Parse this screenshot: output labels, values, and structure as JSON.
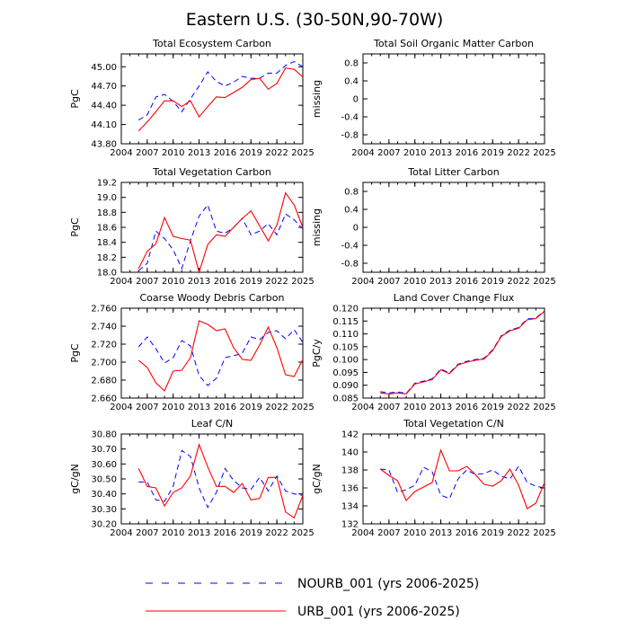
{
  "title": "Eastern U.S. (30-50N,90-70W)",
  "legend": [
    {
      "label": "NOURB_001 (yrs 2006-2025)",
      "color": "#0000ff",
      "style": "dashed"
    },
    {
      "label": "URB_001 (yrs 2006-2025)",
      "color": "#ff0000",
      "style": "solid"
    }
  ],
  "chart_data": [
    {
      "type": "line",
      "title": "Total Ecosystem Carbon",
      "ylabel": "PgC",
      "xlim": [
        2004,
        2025
      ],
      "ylim": [
        43.8,
        45.2
      ],
      "xticks": [
        "2004",
        "2007",
        "2010",
        "2013",
        "2016",
        "2019",
        "2022",
        "2025"
      ],
      "yticks": [
        "43.80",
        "44.10",
        "44.40",
        "44.70",
        "45.00"
      ],
      "x": [
        2006,
        2007,
        2008,
        2009,
        2010,
        2011,
        2012,
        2013,
        2014,
        2015,
        2016,
        2017,
        2018,
        2019,
        2020,
        2021,
        2022,
        2023,
        2024,
        2025
      ],
      "series": [
        {
          "name": "NOURB_001",
          "values": [
            44.17,
            44.25,
            44.53,
            44.57,
            44.46,
            44.3,
            44.5,
            44.7,
            44.92,
            44.77,
            44.7,
            44.76,
            44.85,
            44.82,
            44.82,
            44.9,
            44.9,
            45.02,
            45.08,
            45.0
          ]
        },
        {
          "name": "URB_001",
          "values": [
            44.0,
            44.14,
            44.3,
            44.47,
            44.47,
            44.38,
            44.47,
            44.22,
            44.38,
            44.53,
            44.52,
            44.6,
            44.68,
            44.8,
            44.82,
            44.65,
            44.74,
            44.98,
            44.96,
            44.84
          ]
        }
      ]
    },
    {
      "type": "line",
      "title": "Total Soil Organic Matter Carbon",
      "ylabel": "missing",
      "xlim": [
        2004,
        2025
      ],
      "ylim": [
        -1.0,
        1.0
      ],
      "xticks": [
        "2004",
        "2007",
        "2010",
        "2013",
        "2016",
        "2019",
        "2022",
        "2025"
      ],
      "yticks": [
        "-0.8",
        "-0.4",
        "0",
        "0.4",
        "0.8"
      ],
      "x": [],
      "series": []
    },
    {
      "type": "line",
      "title": "Total Vegetation Carbon",
      "ylabel": "PgC",
      "xlim": [
        2004,
        2025
      ],
      "ylim": [
        18.0,
        19.2
      ],
      "xticks": [
        "2004",
        "2007",
        "2010",
        "2013",
        "2016",
        "2019",
        "2022",
        "2025"
      ],
      "yticks": [
        "18.0",
        "18.2",
        "18.4",
        "18.6",
        "18.8",
        "19.0",
        "19.2"
      ],
      "x": [
        2006,
        2007,
        2008,
        2009,
        2010,
        2011,
        2012,
        2013,
        2014,
        2015,
        2016,
        2017,
        2018,
        2019,
        2020,
        2021,
        2022,
        2023,
        2024,
        2025
      ],
      "series": [
        {
          "name": "NOURB_001",
          "values": [
            18.02,
            18.12,
            18.55,
            18.45,
            18.3,
            18.05,
            18.42,
            18.75,
            18.9,
            18.55,
            18.52,
            18.6,
            18.72,
            18.5,
            18.55,
            18.65,
            18.5,
            18.78,
            18.7,
            18.58
          ]
        },
        {
          "name": "URB_001",
          "values": [
            18.05,
            18.28,
            18.38,
            18.73,
            18.48,
            18.45,
            18.43,
            18.0,
            18.37,
            18.5,
            18.48,
            18.6,
            18.72,
            18.82,
            18.62,
            18.42,
            18.63,
            19.06,
            18.9,
            18.6
          ]
        }
      ]
    },
    {
      "type": "line",
      "title": "Total Litter Carbon",
      "ylabel": "missing",
      "xlim": [
        2004,
        2025
      ],
      "ylim": [
        -1.0,
        1.0
      ],
      "xticks": [
        "2004",
        "2007",
        "2010",
        "2013",
        "2016",
        "2019",
        "2022",
        "2025"
      ],
      "yticks": [
        "-0.8",
        "-0.4",
        "0",
        "0.4",
        "0.8"
      ],
      "x": [],
      "series": []
    },
    {
      "type": "line",
      "title": "Coarse Woody Debris Carbon",
      "ylabel": "PgC",
      "xlim": [
        2004,
        2025
      ],
      "ylim": [
        2.66,
        2.76
      ],
      "xticks": [
        "2004",
        "2007",
        "2010",
        "2013",
        "2016",
        "2019",
        "2022",
        "2025"
      ],
      "yticks": [
        "2.660",
        "2.680",
        "2.700",
        "2.720",
        "2.740",
        "2.760"
      ],
      "x": [
        2006,
        2007,
        2008,
        2009,
        2010,
        2011,
        2012,
        2013,
        2014,
        2015,
        2016,
        2017,
        2018,
        2019,
        2020,
        2021,
        2022,
        2023,
        2024,
        2025
      ],
      "series": [
        {
          "name": "NOURB_001",
          "values": [
            2.717,
            2.728,
            2.715,
            2.699,
            2.705,
            2.724,
            2.718,
            2.685,
            2.674,
            2.682,
            2.705,
            2.707,
            2.71,
            2.728,
            2.725,
            2.733,
            2.735,
            2.726,
            2.736,
            2.722
          ]
        },
        {
          "name": "URB_001",
          "values": [
            2.702,
            2.694,
            2.677,
            2.668,
            2.69,
            2.691,
            2.705,
            2.746,
            2.742,
            2.735,
            2.737,
            2.716,
            2.703,
            2.702,
            2.719,
            2.739,
            2.716,
            2.686,
            2.684,
            2.703
          ]
        }
      ]
    },
    {
      "type": "line",
      "title": "Land Cover Change Flux",
      "ylabel": "PgC/y",
      "xlim": [
        2004,
        2025
      ],
      "ylim": [
        0.085,
        0.12
      ],
      "xticks": [
        "2004",
        "2007",
        "2010",
        "2013",
        "2016",
        "2019",
        "2022",
        "2025"
      ],
      "yticks": [
        "0.085",
        "0.090",
        "0.095",
        "0.100",
        "0.105",
        "0.110",
        "0.115",
        "0.120"
      ],
      "x": [
        2006,
        2007,
        2008,
        2009,
        2010,
        2011,
        2012,
        2013,
        2014,
        2015,
        2016,
        2017,
        2018,
        2019,
        2020,
        2021,
        2022,
        2023,
        2024,
        2025
      ],
      "series": [
        {
          "name": "NOURB_001",
          "values": [
            0.0875,
            0.087,
            0.0874,
            0.0868,
            0.0908,
            0.0916,
            0.0925,
            0.0963,
            0.0948,
            0.0982,
            0.0993,
            0.1,
            0.1005,
            0.1038,
            0.1093,
            0.1115,
            0.1125,
            0.1158,
            0.1162,
            0.119
          ]
        },
        {
          "name": "URB_001",
          "values": [
            0.087,
            0.0866,
            0.087,
            0.0866,
            0.0905,
            0.0913,
            0.0922,
            0.096,
            0.0945,
            0.0979,
            0.099,
            0.0997,
            0.1002,
            0.1035,
            0.109,
            0.1112,
            0.1122,
            0.1155,
            0.116,
            0.1188
          ]
        }
      ]
    },
    {
      "type": "line",
      "title": "Leaf C/N",
      "ylabel": "gC/gN",
      "xlim": [
        2004,
        2025
      ],
      "ylim": [
        30.2,
        30.8
      ],
      "xticks": [
        "2004",
        "2007",
        "2010",
        "2013",
        "2016",
        "2019",
        "2022",
        "2025"
      ],
      "yticks": [
        "30.20",
        "30.30",
        "30.40",
        "30.50",
        "30.60",
        "30.70",
        "30.80"
      ],
      "x": [
        2006,
        2007,
        2008,
        2009,
        2010,
        2011,
        2012,
        2013,
        2014,
        2015,
        2016,
        2017,
        2018,
        2019,
        2020,
        2021,
        2022,
        2023,
        2024,
        2025
      ],
      "series": [
        {
          "name": "NOURB_001",
          "values": [
            30.48,
            30.48,
            30.36,
            30.35,
            30.45,
            30.69,
            30.65,
            30.44,
            30.31,
            30.41,
            30.57,
            30.49,
            30.44,
            30.43,
            30.51,
            30.42,
            30.52,
            30.42,
            30.4,
            30.39
          ]
        },
        {
          "name": "URB_001",
          "values": [
            30.57,
            30.45,
            30.44,
            30.32,
            30.41,
            30.44,
            30.52,
            30.73,
            30.58,
            30.45,
            30.45,
            30.41,
            30.47,
            30.36,
            30.37,
            30.51,
            30.51,
            30.28,
            30.24,
            30.39
          ]
        }
      ]
    },
    {
      "type": "line",
      "title": "Total Vegetation C/N",
      "ylabel": "gC/gN",
      "xlim": [
        2004,
        2025
      ],
      "ylim": [
        132,
        142
      ],
      "xticks": [
        "2004",
        "2007",
        "2010",
        "2013",
        "2016",
        "2019",
        "2022",
        "2025"
      ],
      "yticks": [
        "132",
        "134",
        "136",
        "138",
        "140",
        "142"
      ],
      "x": [
        2006,
        2007,
        2008,
        2009,
        2010,
        2011,
        2012,
        2013,
        2014,
        2015,
        2016,
        2017,
        2018,
        2019,
        2020,
        2021,
        2022,
        2023,
        2024,
        2025
      ],
      "series": [
        {
          "name": "NOURB_001",
          "values": [
            138.1,
            138.0,
            135.5,
            135.8,
            136.3,
            138.3,
            137.8,
            135.2,
            134.8,
            137.0,
            138.0,
            137.5,
            137.6,
            138.0,
            137.3,
            137.0,
            138.4,
            136.6,
            136.2,
            136.0
          ]
        },
        {
          "name": "URB_001",
          "values": [
            138.1,
            137.4,
            136.8,
            134.6,
            135.6,
            136.1,
            136.6,
            140.2,
            137.9,
            137.9,
            138.4,
            137.5,
            136.4,
            136.2,
            136.8,
            138.1,
            136.3,
            133.7,
            134.3,
            136.6
          ]
        }
      ]
    }
  ]
}
